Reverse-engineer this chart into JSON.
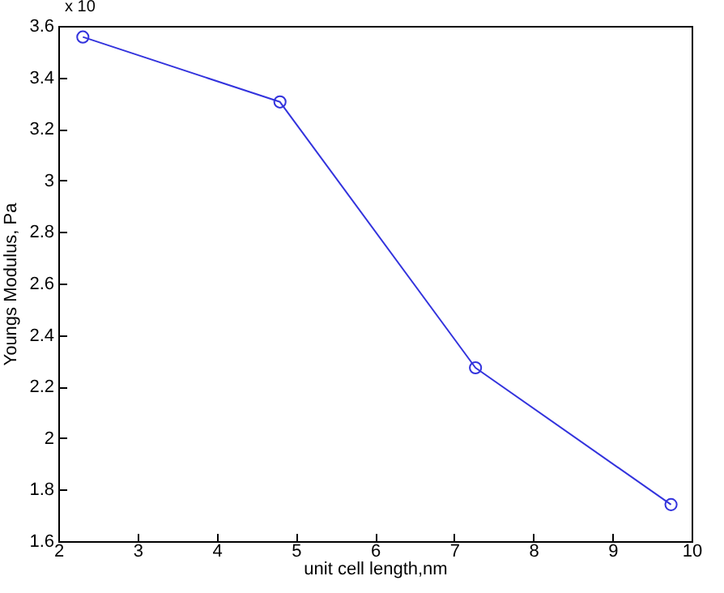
{
  "chart_data": {
    "type": "line",
    "xlabel": "unit cell length,nm",
    "ylabel": "Youngs Modulus,  Pa",
    "annotations": [
      "x 10"
    ],
    "x": [
      2.31,
      4.8,
      7.27,
      9.74
    ],
    "series": [
      {
        "color": "#3333dd",
        "values": [
          3.557,
          3.305,
          2.273,
          1.742
        ]
      }
    ],
    "xlim": [
      2,
      10
    ],
    "xticks": [
      2,
      3,
      4,
      5,
      6,
      7,
      8,
      9,
      10
    ],
    "ylim": [
      1.6,
      3.6
    ],
    "yticks": [
      1.6,
      1.8,
      2,
      2.2,
      2.4,
      2.6,
      2.8,
      3,
      3.2,
      3.4,
      3.6
    ],
    "grid": false,
    "marker": "circle",
    "line_style": "solid"
  }
}
